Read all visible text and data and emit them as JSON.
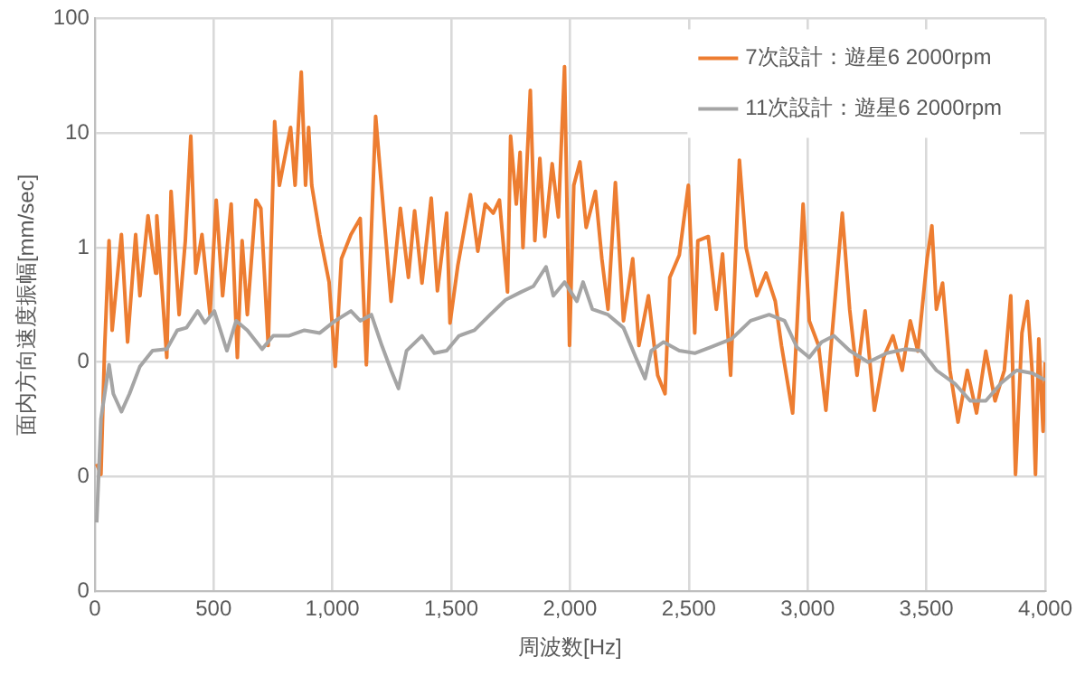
{
  "chart_data": {
    "type": "line",
    "xlabel": "周波数[Hz]",
    "ylabel": "面内方向速度振幅[mm/sec]",
    "log": "y",
    "grid": true,
    "legend": "top right",
    "marker": "none",
    "line_style": "solid",
    "xlim": [
      0,
      4000
    ],
    "xticks": [
      0,
      500,
      {
        "value": 1000,
        "label": "1,000"
      },
      {
        "value": 1500,
        "label": "1,500"
      },
      {
        "value": 2000,
        "label": "2,000"
      },
      {
        "value": 2500,
        "label": "2,500"
      },
      {
        "value": 3000,
        "label": "3,000"
      },
      {
        "value": 3500,
        "label": "3,500"
      },
      {
        "value": 4000,
        "label": "4,000"
      }
    ],
    "ylim": [
      0.001,
      100
    ],
    "yticks": [
      {
        "value": 0.001,
        "label": "0"
      },
      {
        "value": 0.01,
        "label": "0"
      },
      {
        "value": 0.1,
        "label": "0"
      },
      1,
      10,
      100
    ],
    "series": [
      {
        "name": "7次設計：遊星6 2000rpm",
        "color": "#ed7d31",
        "x": [
          8,
          26,
          41,
          60,
          73,
          112,
          138,
          172,
          190,
          224,
          256,
          261,
          303,
          321,
          355,
          381,
          404,
          425,
          451,
          485,
          511,
          538,
          574,
          600,
          620,
          642,
          678,
          699,
          730,
          757,
          777,
          824,
          843,
          869,
          887,
          900,
          913,
          947,
          986,
          1012,
          1038,
          1078,
          1117,
          1143,
          1182,
          1215,
          1247,
          1286,
          1320,
          1346,
          1377,
          1416,
          1442,
          1481,
          1495,
          1528,
          1581,
          1612,
          1643,
          1677,
          1703,
          1737,
          1750,
          1774,
          1790,
          1802,
          1833,
          1852,
          1873,
          1894,
          1925,
          1951,
          1977,
          1998,
          2016,
          2042,
          2068,
          2107,
          2134,
          2160,
          2191,
          2225,
          2264,
          2290,
          2330,
          2369,
          2400,
          2420,
          2460,
          2498,
          2525,
          2538,
          2582,
          2616,
          2642,
          2676,
          2713,
          2741,
          2786,
          2825,
          2864,
          2890,
          2937,
          2981,
          3007,
          3046,
          3077,
          3099,
          3146,
          3177,
          3208,
          3242,
          3281,
          3320,
          3359,
          3398,
          3432,
          3464,
          3503,
          3523,
          3542,
          3568,
          3599,
          3633,
          3672,
          3711,
          3750,
          3789,
          3828,
          3855,
          3875,
          3902,
          3925,
          3946,
          3959,
          3973,
          3991,
          4000
        ],
        "values": [
          0.013,
          0.0105,
          0.126,
          1.15,
          0.19,
          1.3,
          0.15,
          1.3,
          0.38,
          1.9,
          0.6,
          1.9,
          0.11,
          3.1,
          0.26,
          1.15,
          9.4,
          0.6,
          1.3,
          0.26,
          2.6,
          0.38,
          2.4,
          0.11,
          1.15,
          0.26,
          2.6,
          2.2,
          0.14,
          12.6,
          3.5,
          11.2,
          3.5,
          34,
          3.5,
          11.2,
          3.5,
          1.3,
          0.5,
          0.092,
          0.8,
          1.3,
          1.8,
          0.095,
          14,
          2.1,
          0.34,
          2.2,
          0.55,
          2.1,
          0.49,
          2.7,
          0.42,
          2,
          0.22,
          0.7,
          2.9,
          0.93,
          2.4,
          2,
          2.6,
          0.41,
          9.4,
          2.4,
          6.8,
          1,
          23.6,
          1.15,
          6,
          1.25,
          5.4,
          1.85,
          38,
          0.14,
          3.5,
          5.6,
          1.5,
          3.1,
          0.8,
          0.29,
          3.7,
          0.23,
          0.8,
          0.14,
          0.38,
          0.077,
          0.053,
          0.55,
          0.86,
          3.5,
          0.18,
          1.15,
          1.25,
          0.29,
          0.88,
          0.077,
          5.8,
          1,
          0.38,
          0.6,
          0.34,
          0.14,
          0.036,
          2.4,
          0.23,
          0.14,
          0.038,
          0.14,
          2,
          0.29,
          0.077,
          0.28,
          0.038,
          0.11,
          0.17,
          0.085,
          0.23,
          0.125,
          0.8,
          1.55,
          0.29,
          0.49,
          0.085,
          0.03,
          0.085,
          0.036,
          0.125,
          0.046,
          0.085,
          0.38,
          0.0105,
          0.18,
          0.34,
          0.077,
          0.0105,
          0.16,
          0.025,
          0.1
        ]
      },
      {
        "name": "11次設計：遊星6 2000rpm",
        "color": "#a5a5a5",
        "x": [
          8,
          26,
          60,
          78,
          112,
          146,
          190,
          243,
          303,
          347,
          386,
          433,
          464,
          503,
          556,
          595,
          642,
          704,
          751,
          816,
          882,
          947,
          1012,
          1078,
          1117,
          1164,
          1208,
          1247,
          1278,
          1312,
          1377,
          1429,
          1481,
          1533,
          1598,
          1664,
          1729,
          1794,
          1846,
          1899,
          1930,
          1977,
          2029,
          2055,
          2094,
          2160,
          2225,
          2277,
          2316,
          2342,
          2394,
          2460,
          2525,
          2590,
          2681,
          2760,
          2838,
          2903,
          2955,
          3007,
          3059,
          3111,
          3177,
          3255,
          3333,
          3411,
          3477,
          3542,
          3620,
          3685,
          3750,
          3815,
          3880,
          3946,
          4000
        ],
        "values": [
          0.004,
          0.032,
          0.095,
          0.053,
          0.037,
          0.053,
          0.092,
          0.126,
          0.13,
          0.19,
          0.2,
          0.28,
          0.22,
          0.28,
          0.126,
          0.23,
          0.19,
          0.13,
          0.17,
          0.17,
          0.19,
          0.18,
          0.23,
          0.28,
          0.23,
          0.26,
          0.14,
          0.085,
          0.059,
          0.126,
          0.17,
          0.12,
          0.126,
          0.17,
          0.19,
          0.26,
          0.35,
          0.41,
          0.46,
          0.68,
          0.38,
          0.5,
          0.34,
          0.5,
          0.29,
          0.26,
          0.2,
          0.11,
          0.072,
          0.126,
          0.15,
          0.126,
          0.12,
          0.135,
          0.16,
          0.23,
          0.26,
          0.23,
          0.135,
          0.11,
          0.15,
          0.17,
          0.126,
          0.1,
          0.12,
          0.13,
          0.126,
          0.085,
          0.065,
          0.046,
          0.046,
          0.066,
          0.085,
          0.08,
          0.07
        ]
      }
    ]
  }
}
